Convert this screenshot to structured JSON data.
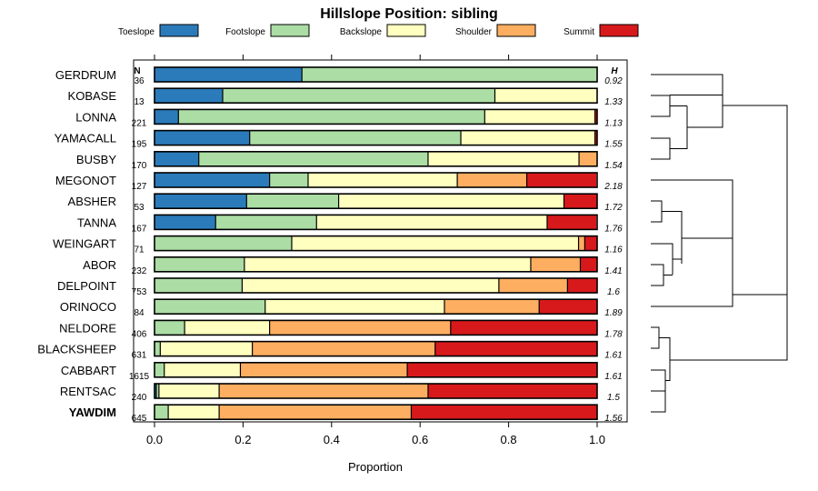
{
  "chart_data": {
    "type": "bar",
    "stacked": true,
    "orientation": "horizontal",
    "title": "Hillslope Position: sibling",
    "xlabel": "Proportion",
    "xlim": [
      0,
      1
    ],
    "xticks": [
      "0.0",
      "0.2",
      "0.4",
      "0.6",
      "0.8",
      "1.0"
    ],
    "n_header": "N",
    "h_header": "H",
    "highlighted_category": "YAWDIM",
    "legend": [
      {
        "name": "Toeslope",
        "color": "#2b7bba"
      },
      {
        "name": "Footslope",
        "color": "#abdda4"
      },
      {
        "name": "Backslope",
        "color": "#ffffbf"
      },
      {
        "name": "Shoulder",
        "color": "#fdae61"
      },
      {
        "name": "Summit",
        "color": "#d7191c"
      }
    ],
    "categories": [
      "GERDRUM",
      "KOBASE",
      "LONNA",
      "YAMACALL",
      "BUSBY",
      "MEGONOT",
      "ABSHER",
      "TANNA",
      "WEINGART",
      "ABOR",
      "DELPOINT",
      "ORINOCO",
      "NELDORE",
      "BLACKSHEEP",
      "CABBART",
      "RENTSAC",
      "YAWDIM"
    ],
    "n": [
      "36",
      "13",
      "221",
      "195",
      "170",
      "127",
      "53",
      "167",
      "71",
      "232",
      "753",
      "84",
      "406",
      "631",
      "1615",
      "240",
      "645"
    ],
    "h": [
      "0.92",
      "1.33",
      "1.13",
      "1.55",
      "1.54",
      "2.18",
      "1.72",
      "1.76",
      "1.16",
      "1.41",
      "1.6",
      "1.89",
      "1.78",
      "1.61",
      "1.61",
      "1.5",
      "1.56"
    ],
    "series": [
      {
        "name": "Toeslope",
        "values": [
          0.333,
          0.154,
          0.054,
          0.215,
          0.1,
          0.26,
          0.208,
          0.138,
          0.0,
          0.0,
          0.0,
          0.0,
          0.0,
          0.0,
          0.0,
          0.004,
          0.0
        ]
      },
      {
        "name": "Footslope",
        "values": [
          0.667,
          0.615,
          0.692,
          0.477,
          0.518,
          0.087,
          0.208,
          0.228,
          0.31,
          0.203,
          0.198,
          0.25,
          0.068,
          0.013,
          0.022,
          0.006,
          0.031
        ]
      },
      {
        "name": "Backslope",
        "values": [
          0.0,
          0.231,
          0.249,
          0.303,
          0.341,
          0.337,
          0.509,
          0.521,
          0.648,
          0.647,
          0.58,
          0.405,
          0.192,
          0.208,
          0.172,
          0.136,
          0.115
        ]
      },
      {
        "name": "Shoulder",
        "values": [
          0.0,
          0.0,
          0.0,
          0.0,
          0.041,
          0.157,
          0.0,
          0.0,
          0.014,
          0.112,
          0.155,
          0.214,
          0.409,
          0.413,
          0.377,
          0.472,
          0.434
        ]
      },
      {
        "name": "Summit",
        "values": [
          0.0,
          0.0,
          0.005,
          0.005,
          0.0,
          0.157,
          0.075,
          0.111,
          0.028,
          0.038,
          0.067,
          0.131,
          0.331,
          0.366,
          0.429,
          0.382,
          0.42
        ]
      }
    ]
  }
}
